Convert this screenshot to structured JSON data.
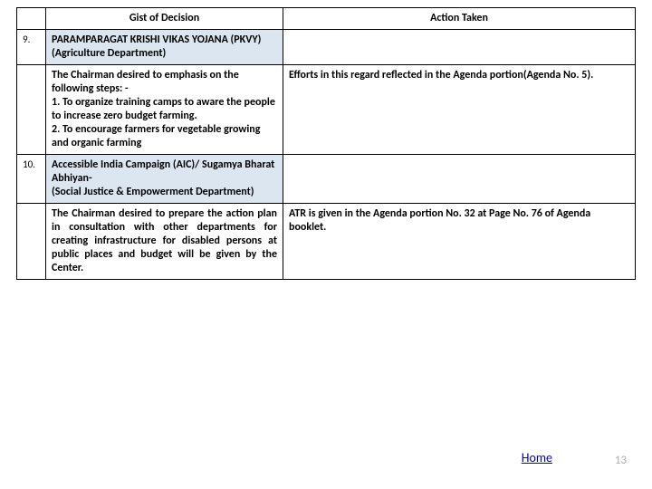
{
  "table": {
    "headers": {
      "gist": "Gist of Decision",
      "action": "Action Taken"
    },
    "rows": [
      {
        "num": "9.",
        "gist": "PARAMPARAGAT KRISHI VIKAS YOJANA (PKVY)\n(Agriculture Department)",
        "action": "",
        "shaded": true,
        "bold": true
      },
      {
        "num": "",
        "gist": "The Chairman desired to emphasis on the following steps: -\n1. To organize training camps to aware the people to increase zero budget farming.\n2. To encourage farmers for vegetable growing and organic farming",
        "action": "Efforts in this regard reflected in the Agenda portion(Agenda No. 5).",
        "shaded": false,
        "bold": true
      },
      {
        "num": "10.",
        "gist": "Accessible India Campaign (AIC)/ Sugamya Bharat Abhiyan-\n(Social Justice & Empowerment Department)",
        "action": "",
        "shaded": true,
        "bold": true
      },
      {
        "num": "",
        "gist": "The Chairman desired to prepare the action plan in consultation with other departments for creating infrastructure for disabled persons at public places and budget will be given by the Center.",
        "action": "ATR is given in the Agenda portion No. 32 at Page No. 76 of Agenda booklet.",
        "shaded": false,
        "bold": true,
        "justify": true
      }
    ]
  },
  "footer": {
    "home": "Home",
    "pageno": "13"
  }
}
